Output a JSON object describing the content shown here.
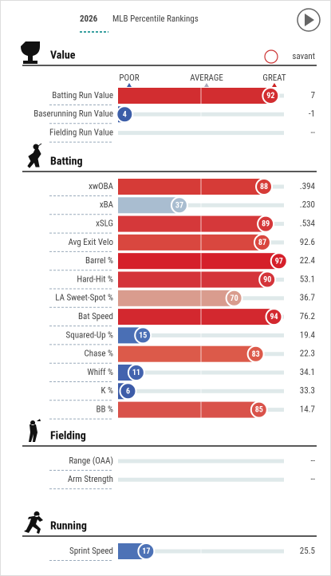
{
  "header": {
    "year": "2026",
    "title": "MLB Percentile Rankings"
  },
  "brand": "savant",
  "xlim": [
    0,
    100
  ],
  "scale": {
    "poor": "POOR",
    "average": "AVERAGE",
    "great": "GREAT"
  },
  "sections": [
    {
      "title": "Value",
      "rows": [
        {
          "label": "Batting Run Value",
          "percentile": 92,
          "value": "7",
          "color": "#d22d30"
        },
        {
          "label": "Baserunning Run Value",
          "percentile": 4,
          "value": "-1",
          "color": "#3c5ea8"
        },
        {
          "label": "Fielding Run Value",
          "percentile": null,
          "value": "--",
          "color": null
        }
      ]
    },
    {
      "title": "Batting",
      "rows": [
        {
          "label": "xwOBA",
          "percentile": 88,
          "value": ".394",
          "color": "#d63b37"
        },
        {
          "label": "xBA",
          "percentile": 37,
          "value": ".230",
          "color": "#a9bdd0"
        },
        {
          "label": "xSLG",
          "percentile": 89,
          "value": ".534",
          "color": "#d5383a"
        },
        {
          "label": "Avg Exit Velo",
          "percentile": 87,
          "value": "92.6",
          "color": "#d9473f"
        },
        {
          "label": "Barrel %",
          "percentile": 97,
          "value": "22.4",
          "color": "#d51f2a"
        },
        {
          "label": "Hard-Hit %",
          "percentile": 90,
          "value": "53.1",
          "color": "#d4343a"
        },
        {
          "label": "LA Sweet-Spot %",
          "percentile": 70,
          "value": "36.7",
          "color": "#d99c8e"
        },
        {
          "label": "Bat Speed",
          "percentile": 94,
          "value": "76.2",
          "color": "#d3282f"
        },
        {
          "label": "Squared-Up %",
          "percentile": 15,
          "value": "19.4",
          "color": "#4a6fb5"
        },
        {
          "label": "Chase %",
          "percentile": 83,
          "value": "22.3",
          "color": "#dc5a4a"
        },
        {
          "label": "Whiff %",
          "percentile": 11,
          "value": "34.1",
          "color": "#4363ae"
        },
        {
          "label": "K %",
          "percentile": 6,
          "value": "33.3",
          "color": "#3d5ca8"
        },
        {
          "label": "BB %",
          "percentile": 85,
          "value": "14.7",
          "color": "#d9524a"
        }
      ]
    },
    {
      "title": "Fielding",
      "rows": [
        {
          "label": "Range (OAA)",
          "percentile": null,
          "value": "--",
          "color": null
        },
        {
          "label": "Arm Strength",
          "percentile": null,
          "value": "--",
          "color": null
        }
      ]
    },
    {
      "title": "Running",
      "rows": [
        {
          "label": "Sprint Speed",
          "percentile": 17,
          "value": "25.5",
          "color": "#4d72b6"
        }
      ]
    }
  ]
}
